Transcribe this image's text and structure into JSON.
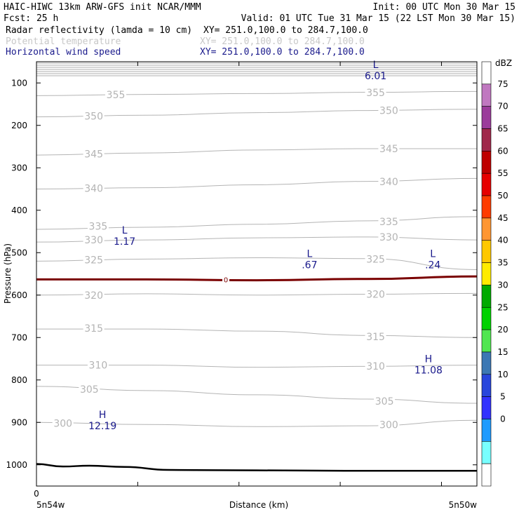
{
  "header": {
    "line1_left": "HAIC-HIWC 13km ARW-GFS init   NCAR/MMM",
    "line1_right": "Init: 00 UTC Mon 30 Mar 15",
    "line2_left": "Fcst:   25 h",
    "line2_right": "Valid: 01 UTC Tue 31 Mar 15 (22 LST Mon 30 Mar 15)",
    "fields": [
      {
        "name": "Radar reflectivity (lamda = 10 cm)",
        "xy": "XY= 251.0,100.0 to 284.7,100.0",
        "color": "#000000"
      },
      {
        "name": "Potential temperature",
        "xy": "XY= 251.0,100.0 to 284.7,100.0",
        "color": "#c8c8c8"
      },
      {
        "name": "Horizontal wind speed",
        "xy": "XY= 251.0,100.0 to 284.7,100.0",
        "color": "#1a1a8c"
      }
    ]
  },
  "chart_data": {
    "type": "contour-cross-section",
    "xlabel": "Distance (km)",
    "ylabel": "Pressure (hPa)",
    "x_ticks": [
      {
        "value": 0,
        "label": "0"
      }
    ],
    "x_end_labels": {
      "left": "5n54w",
      "right": "5n50w"
    },
    "y_ticks": [
      100,
      200,
      300,
      400,
      500,
      600,
      700,
      800,
      900,
      1000
    ],
    "ylim": [
      50,
      1050
    ],
    "theta_contours": [
      {
        "value": 355,
        "p": [
          130,
          127,
          125,
          122,
          120
        ],
        "labels": [
          {
            "text": "355",
            "x": 0.18,
            "p": 128
          },
          {
            "text": "355",
            "x": 0.77,
            "p": 123
          }
        ]
      },
      {
        "value": 350,
        "p": [
          180,
          176,
          170,
          165,
          162
        ],
        "labels": [
          {
            "text": "350",
            "x": 0.13,
            "p": 178
          },
          {
            "text": "350",
            "x": 0.8,
            "p": 165
          }
        ]
      },
      {
        "value": 345,
        "p": [
          270,
          265,
          258,
          255,
          255
        ],
        "labels": [
          {
            "text": "345",
            "x": 0.13,
            "p": 267
          },
          {
            "text": "345",
            "x": 0.8,
            "p": 255
          }
        ]
      },
      {
        "value": 340,
        "p": [
          350,
          347,
          340,
          332,
          325
        ],
        "labels": [
          {
            "text": "340",
            "x": 0.13,
            "p": 348
          },
          {
            "text": "340",
            "x": 0.8,
            "p": 333
          }
        ]
      },
      {
        "value": 335,
        "p": [
          445,
          440,
          433,
          425,
          415
        ],
        "labels": [
          {
            "text": "335",
            "x": 0.14,
            "p": 438
          },
          {
            "text": "335",
            "x": 0.8,
            "p": 427
          }
        ]
      },
      {
        "value": 330,
        "p": [
          475,
          470,
          465,
          463,
          470
        ],
        "labels": [
          {
            "text": "330",
            "x": 0.13,
            "p": 470
          },
          {
            "text": "330",
            "x": 0.8,
            "p": 463
          }
        ]
      },
      {
        "value": 325,
        "p": [
          520,
          515,
          512,
          514,
          540
        ],
        "labels": [
          {
            "text": "325",
            "x": 0.13,
            "p": 517
          },
          {
            "text": "325",
            "x": 0.77,
            "p": 515
          }
        ]
      },
      {
        "value": 320,
        "p": [
          600,
          597,
          600,
          598,
          596
        ],
        "labels": [
          {
            "text": "320",
            "x": 0.13,
            "p": 600
          },
          {
            "text": "320",
            "x": 0.77,
            "p": 598
          }
        ]
      },
      {
        "value": 315,
        "p": [
          680,
          680,
          685,
          695,
          700
        ],
        "labels": [
          {
            "text": "315",
            "x": 0.13,
            "p": 678
          },
          {
            "text": "315",
            "x": 0.77,
            "p": 698
          }
        ]
      },
      {
        "value": 310,
        "p": [
          765,
          765,
          770,
          768,
          765
        ],
        "labels": [
          {
            "text": "310",
            "x": 0.14,
            "p": 765
          },
          {
            "text": "310",
            "x": 0.77,
            "p": 767
          }
        ]
      },
      {
        "value": 305,
        "p": [
          815,
          825,
          835,
          845,
          855
        ],
        "labels": [
          {
            "text": "305",
            "x": 0.12,
            "p": 822
          },
          {
            "text": "305",
            "x": 0.79,
            "p": 850
          }
        ]
      },
      {
        "value": 300,
        "p": [
          900,
          905,
          910,
          908,
          895
        ],
        "labels": [
          {
            "text": "300",
            "x": 0.06,
            "p": 902
          },
          {
            "text": "300",
            "x": 0.8,
            "p": 905
          }
        ]
      }
    ],
    "reflectivity_contour": {
      "value": 0,
      "label": "0",
      "p": [
        563,
        563,
        565,
        562,
        556
      ]
    },
    "wind_extrema": [
      {
        "type": "L",
        "value": "6.01",
        "x": 0.77,
        "p": 65
      },
      {
        "type": "L",
        "value": "1.17",
        "x": 0.2,
        "p": 455
      },
      {
        "type": "L",
        "value": ".67",
        "x": 0.62,
        "p": 510
      },
      {
        "type": "L",
        "value": ".24",
        "x": 0.9,
        "p": 510
      },
      {
        "type": "H",
        "value": "11.08",
        "x": 0.89,
        "p": 758
      },
      {
        "type": "H",
        "value": "12.19",
        "x": 0.15,
        "p": 890
      }
    ],
    "terrain": {
      "x": [
        0,
        0.06,
        0.12,
        0.2,
        0.3,
        0.5,
        0.7,
        0.9,
        1.0
      ],
      "p": [
        998,
        1004,
        1002,
        1005,
        1012,
        1013,
        1014,
        1014,
        1014
      ]
    },
    "colorbar": {
      "title": "dBZ",
      "levels": [
        {
          "label": "75",
          "color": "#ffffff"
        },
        {
          "label": "70",
          "color": "#c078c0"
        },
        {
          "label": "65",
          "color": "#9b3c9b"
        },
        {
          "label": "60",
          "color": "#a0284b"
        },
        {
          "label": "55",
          "color": "#be0000"
        },
        {
          "label": "50",
          "color": "#e60000"
        },
        {
          "label": "45",
          "color": "#ff3c00"
        },
        {
          "label": "40",
          "color": "#ff9632"
        },
        {
          "label": "35",
          "color": "#ffc800"
        },
        {
          "label": "30",
          "color": "#ffeb00"
        },
        {
          "label": "25",
          "color": "#00aa00"
        },
        {
          "label": "20",
          "color": "#00d200"
        },
        {
          "label": "15",
          "color": "#50e650"
        },
        {
          "label": "10",
          "color": "#3c78b4"
        },
        {
          "label": "5",
          "color": "#2846dc"
        },
        {
          "label": "0",
          "color": "#3232ff"
        },
        {
          "label": "",
          "color": "#1e9bff"
        },
        {
          "label": "",
          "color": "#78ffff"
        },
        {
          "label": "",
          "color": "#ffffff"
        }
      ]
    }
  }
}
